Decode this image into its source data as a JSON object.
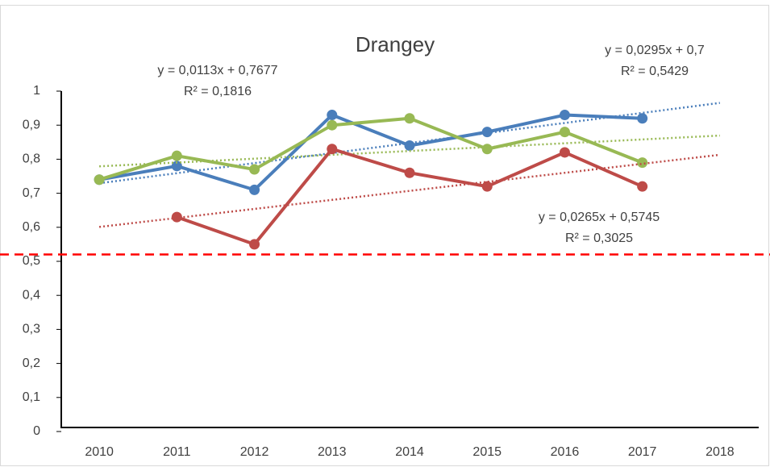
{
  "chart_data": {
    "type": "line",
    "title": "Drangey",
    "categories": [
      "2010",
      "2011",
      "2012",
      "2013",
      "2014",
      "2015",
      "2016",
      "2017",
      "2018"
    ],
    "series": [
      {
        "color": "#4a7ebb",
        "values": [
          0.74,
          0.78,
          0.71,
          0.93,
          0.84,
          0.88,
          0.93,
          0.92,
          null
        ],
        "trendline": {
          "slope": 0.0295,
          "intercept": 0.7,
          "equation": "y = 0,0295x + 0,7",
          "r2": "R² = 0,5429"
        }
      },
      {
        "color": "#98b954",
        "values": [
          0.74,
          0.81,
          0.77,
          0.9,
          0.92,
          0.83,
          0.88,
          0.79,
          null
        ],
        "trendline": {
          "slope": 0.0113,
          "intercept": 0.7677,
          "equation": "y = 0,0113x + 0,7677",
          "r2": "R² = 0,1816"
        }
      },
      {
        "color": "#be4b48",
        "values": [
          null,
          0.63,
          0.55,
          0.83,
          0.76,
          0.72,
          0.82,
          0.72,
          null
        ],
        "trendline": {
          "slope": 0.0265,
          "intercept": 0.5745,
          "equation": "y = 0,0265x + 0,5745",
          "r2": "R² = 0,3025"
        }
      }
    ],
    "threshold": 0.52,
    "threshold_color": "#ff0000",
    "ylim": [
      0,
      1
    ],
    "yticks": [
      0,
      {
        "value": 0.1,
        "label": "0,1"
      },
      {
        "value": 0.2,
        "label": "0,2"
      },
      {
        "value": 0.3,
        "label": "0,3"
      },
      {
        "value": 0.4,
        "label": "0,4"
      },
      {
        "value": 0.5,
        "label": "0,5"
      },
      {
        "value": 0.6,
        "label": "0,6"
      },
      {
        "value": 0.7,
        "label": "0,7"
      },
      {
        "value": 0.8,
        "label": "0,8"
      },
      {
        "value": 0.9,
        "label": "0,9"
      },
      1
    ],
    "grid": false
  }
}
